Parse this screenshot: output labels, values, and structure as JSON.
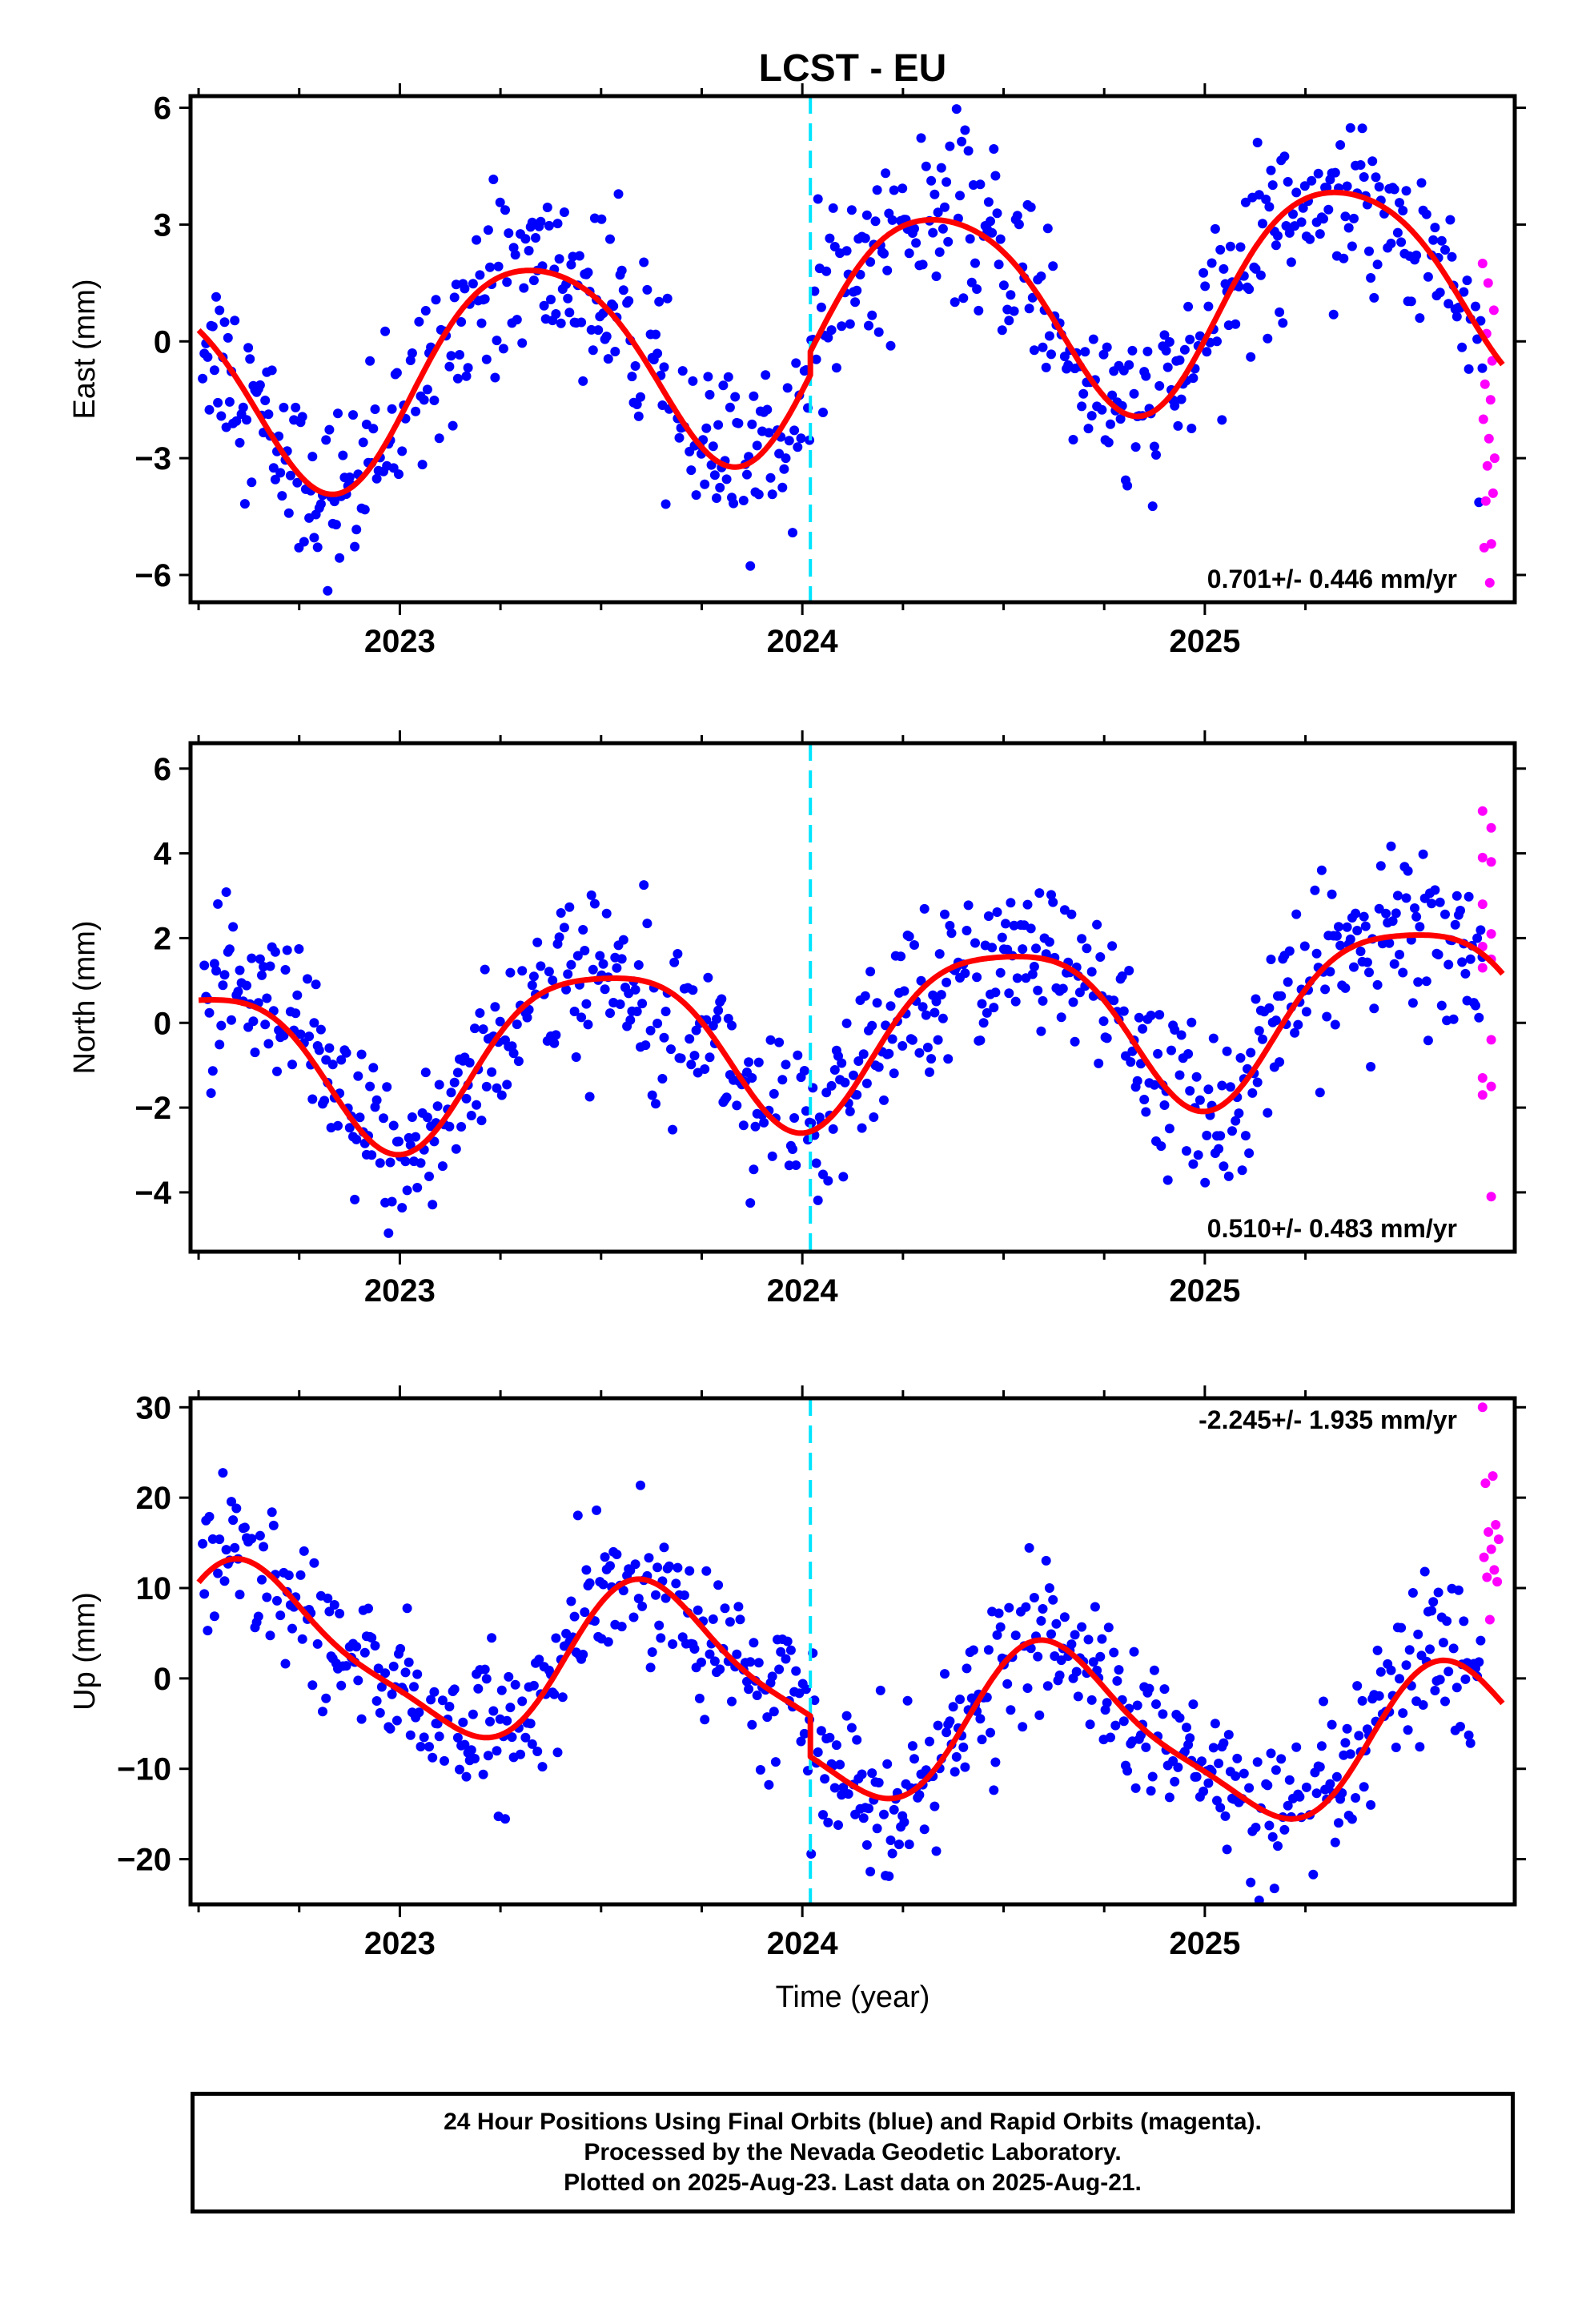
{
  "title": "LCST - EU",
  "xlabel": "Time (year)",
  "footer": {
    "line1": "24 Hour Positions Using Final Orbits (blue) and Rapid Orbits (magenta).",
    "line2": "Processed by the Nevada Geodetic Laboratory.",
    "line3": "Plotted on 2025-Aug-23. Last data on 2025-Aug-21."
  },
  "colors": {
    "final_orbits": "#0000ff",
    "rapid_orbits": "#ff00ff",
    "model_fit": "#ff0000",
    "equipment_change": "#00e5ff"
  },
  "chart_data": [
    {
      "type": "scatter",
      "name": "east",
      "ylabel": "East (mm)",
      "xlim": [
        2022.48,
        2025.77
      ],
      "ylim": [
        -6.7,
        6.3
      ],
      "yticks": [
        -6,
        -3,
        0,
        3,
        6
      ],
      "ytick_labels": [
        "−6",
        "−3",
        "0",
        "3",
        "6"
      ],
      "xticks": [
        2023,
        2024,
        2025
      ],
      "xtick_labels": [
        "2023",
        "2024",
        "2025"
      ],
      "rate_label": "0.701+/- 0.446 mm/yr",
      "rate_position": "bottom-right",
      "step_epoch": 2024.02,
      "fit": {
        "mean": 0.0,
        "rate": 0.701,
        "amp1": 2.7,
        "phase1": 2023.33,
        "amp2": 0.35,
        "phase2": 2023.1,
        "step": 0.6
      },
      "scatter_sd": 1.1,
      "rapid": {
        "x_start": 2025.69,
        "x_end": 2025.72,
        "values": [
          2.0,
          1.5,
          0.8,
          0.2,
          -0.5,
          -1.1,
          -1.5,
          -2.0,
          -2.5,
          -3.0,
          -3.2,
          -3.9,
          -4.1,
          -5.2,
          -5.3,
          -6.2
        ]
      }
    },
    {
      "type": "scatter",
      "name": "north",
      "ylabel": "North (mm)",
      "xlim": [
        2022.48,
        2025.77
      ],
      "ylim": [
        -5.4,
        6.6
      ],
      "yticks": [
        -4,
        -2,
        0,
        2,
        4,
        6
      ],
      "ytick_labels": [
        "−4",
        "−2",
        "0",
        "2",
        "4",
        "6"
      ],
      "xticks": [
        2023,
        2024,
        2025
      ],
      "xtick_labels": [
        "2023",
        "2024",
        "2025"
      ],
      "rate_label": "0.510+/- 0.483 mm/yr",
      "rate_position": "bottom-right",
      "step_epoch": 2024.02,
      "fit": {
        "mean": -0.2,
        "rate": 0.51,
        "amp1": 1.95,
        "phase1": 2023.5,
        "amp2": 0.4,
        "phase2": 2023.25,
        "step": 0.0
      },
      "scatter_sd": 0.95,
      "rapid": {
        "x_start": 2025.69,
        "x_end": 2025.73,
        "values": [
          5.0,
          4.6,
          3.9,
          3.8,
          2.8,
          2.1,
          1.8,
          1.5,
          1.3,
          -0.4,
          -1.3,
          -1.5,
          -1.7,
          -4.1
        ]
      }
    },
    {
      "type": "scatter",
      "name": "up",
      "ylabel": "Up (mm)",
      "xlim": [
        2022.48,
        2025.77
      ],
      "ylim": [
        -25,
        31
      ],
      "yticks": [
        -20,
        -10,
        0,
        10,
        20,
        30
      ],
      "ytick_labels": [
        "−20",
        "−10",
        "0",
        "10",
        "20",
        "30"
      ],
      "xticks": [
        2023,
        2024,
        2025
      ],
      "xtick_labels": [
        "2023",
        "2024",
        "2025"
      ],
      "rate_label": "-2.245+/- 1.935 mm/yr",
      "rate_position": "top-right",
      "step_epoch": 2024.02,
      "fit": {
        "mean": 0.0,
        "rate": -2.245,
        "amp1": 8.5,
        "phase1": 2022.64,
        "amp2": 2.0,
        "phase2": 2022.55,
        "step": -4.5
      },
      "scatter_sd": 4.0,
      "rapid": {
        "x_start": 2025.69,
        "x_end": 2025.73,
        "values": [
          30.0,
          22.4,
          21.6,
          17.0,
          16.2,
          15.4,
          14.3,
          13.4,
          12.0,
          11.2,
          10.7,
          6.5
        ]
      }
    }
  ]
}
